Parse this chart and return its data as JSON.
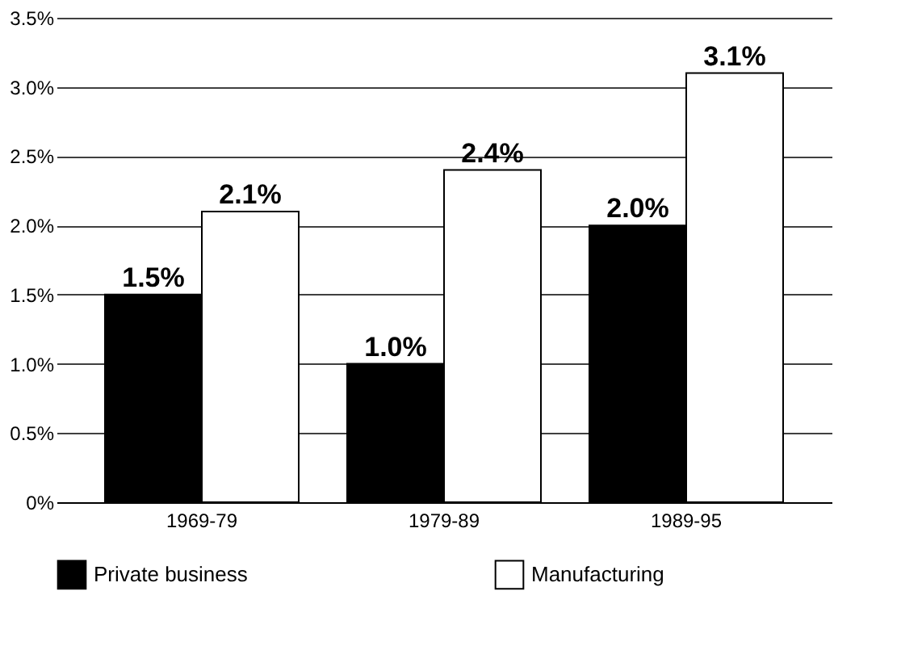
{
  "chart_data": {
    "type": "bar",
    "categories": [
      "1969-79",
      "1979-89",
      "1989-95"
    ],
    "series": [
      {
        "name": "Private business",
        "color": "#000000",
        "values": [
          1.5,
          1.0,
          2.0
        ],
        "value_labels": [
          "1.5%",
          "1.0%",
          "2.0%"
        ]
      },
      {
        "name": "Manufacturing",
        "color": "#ffffff",
        "values": [
          2.1,
          2.4,
          3.1
        ],
        "value_labels": [
          "2.1%",
          "2.4%",
          "3.1%"
        ]
      }
    ],
    "ylim": [
      0,
      3.5
    ],
    "yticks": [
      {
        "value": 0,
        "label": "0%"
      },
      {
        "value": 0.5,
        "label": "0.5%"
      },
      {
        "value": 1,
        "label": "1.0%"
      },
      {
        "value": 1.5,
        "label": "1.5%"
      },
      {
        "value": 2,
        "label": "2.0%"
      },
      {
        "value": 2.5,
        "label": "2.5%"
      },
      {
        "value": 3,
        "label": "3.0%"
      },
      {
        "value": 3.5,
        "label": "3.5%"
      }
    ],
    "grid": "y",
    "legend": "bottom"
  }
}
